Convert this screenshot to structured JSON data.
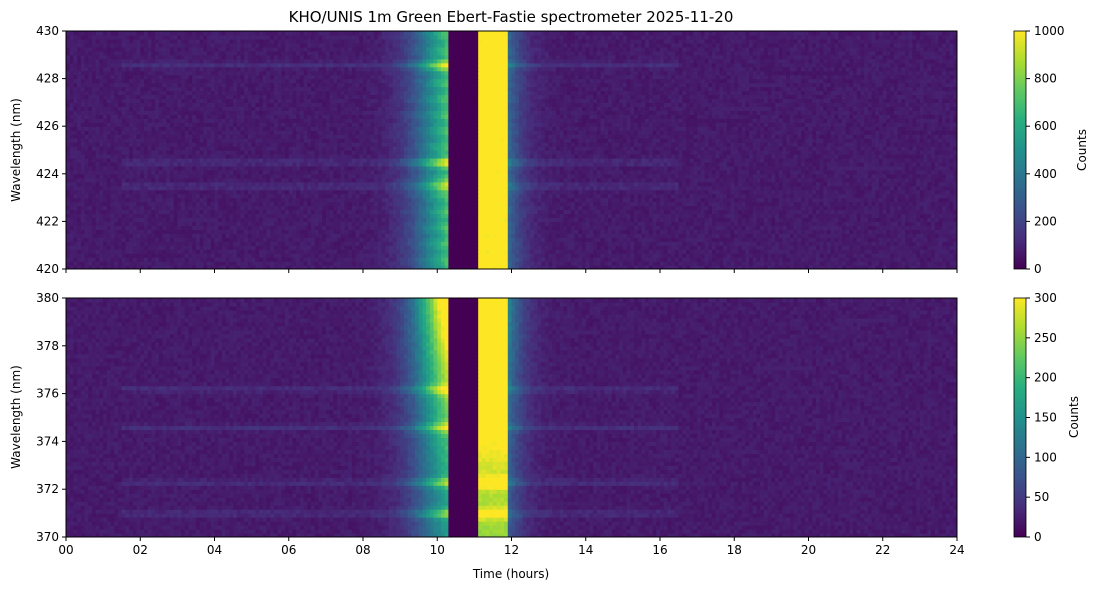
{
  "chart_data": {
    "type": "heatmap",
    "title": "KHO/UNIS 1m Green Ebert-Fastie spectrometer 2025-11-20",
    "xlabel": "Time (hours)",
    "xlim": [
      0,
      24
    ],
    "x_ticks": [
      "00",
      "02",
      "04",
      "06",
      "08",
      "10",
      "12",
      "14",
      "16",
      "18",
      "20",
      "22",
      "24"
    ],
    "x_tick_values": [
      0,
      2,
      4,
      6,
      8,
      10,
      12,
      14,
      16,
      18,
      20,
      22,
      24
    ],
    "colormap": "viridis",
    "gap_hours": [
      10.35,
      11.1
    ],
    "panels": [
      {
        "ylabel": "Wavelength (nm)",
        "ylim": [
          420,
          430
        ],
        "y_ticks": [
          "420",
          "422",
          "424",
          "426",
          "428",
          "430"
        ],
        "y_tick_values": [
          420,
          422,
          424,
          426,
          428,
          430
        ],
        "colorbar_label": "Counts",
        "colorbar_range": [
          0,
          1000
        ],
        "colorbar_ticks": [
          "0",
          "200",
          "400",
          "600",
          "800",
          "1000"
        ],
        "colorbar_tick_values": [
          0,
          200,
          400,
          600,
          800,
          1000
        ],
        "peak_counts": 1000,
        "bright_band_wavelengths": [
          428.6,
          424.5,
          423.5
        ]
      },
      {
        "ylabel": "Wavelength (nm)",
        "ylim": [
          370,
          380
        ],
        "y_ticks": [
          "370",
          "372",
          "374",
          "376",
          "378",
          "380"
        ],
        "y_tick_values": [
          370,
          372,
          374,
          376,
          378,
          380
        ],
        "colorbar_label": "Counts",
        "colorbar_range": [
          0,
          300
        ],
        "colorbar_ticks": [
          "0",
          "50",
          "100",
          "150",
          "200",
          "250",
          "300"
        ],
        "colorbar_tick_values": [
          0,
          50,
          100,
          150,
          200,
          250,
          300
        ],
        "peak_counts": 300,
        "bright_band_wavelengths": [
          376.2,
          374.6,
          372.3,
          371.0
        ]
      }
    ]
  }
}
